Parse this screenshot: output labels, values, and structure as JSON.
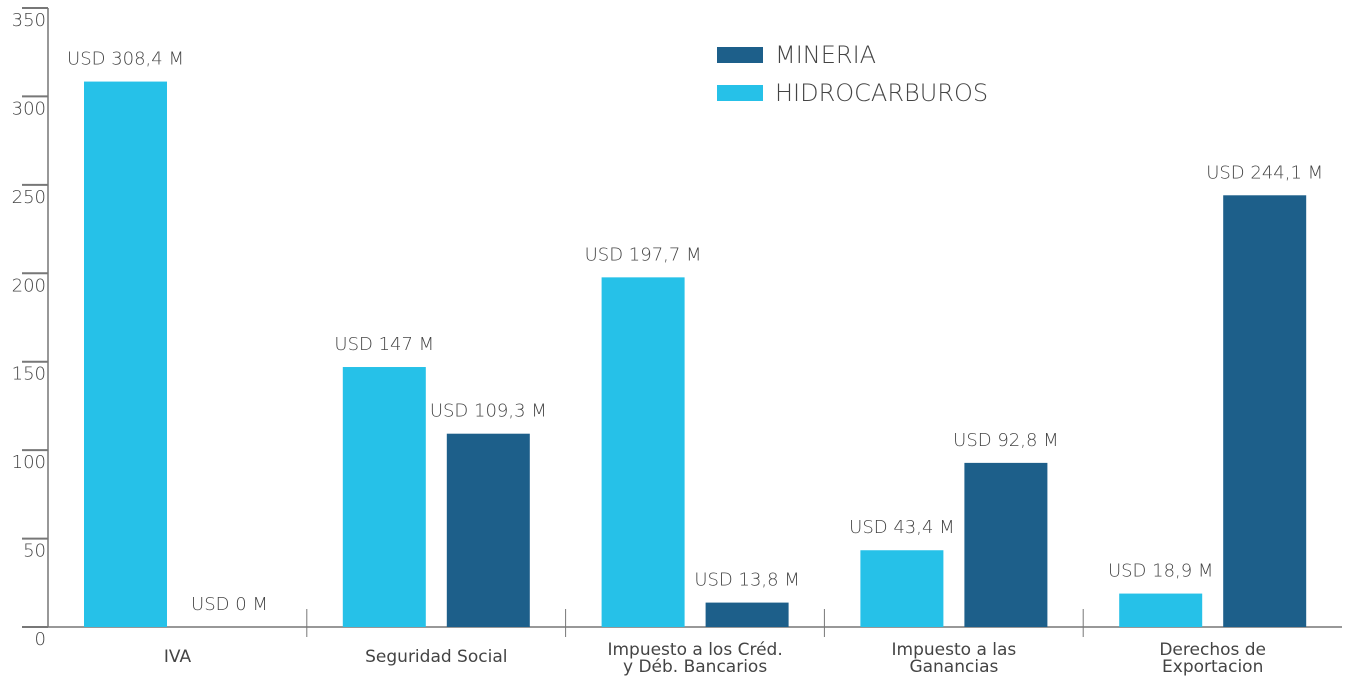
{
  "chart_data": {
    "type": "bar",
    "categories": [
      "IVA",
      "Seguridad Social",
      "Impuesto a los Créd.\ny Déb. Bancarios",
      "Impuesto a las\nGanancias",
      "Derechos de\nExportacion"
    ],
    "series": [
      {
        "name": "MINERIA",
        "color": "#1d5f8a",
        "values": [
          0,
          109.3,
          13.8,
          92.8,
          244.1
        ],
        "value_labels": [
          "USD 0 M",
          "USD 109,3 M",
          "USD 13,8 M",
          "USD 92,8 M",
          "USD 244,1 M"
        ]
      },
      {
        "name": "HIDROCARBUROS",
        "color": "#26c1e8",
        "values": [
          308.4,
          147,
          197.7,
          43.4,
          18.9
        ],
        "value_labels": [
          "USD 308,4 M",
          "USD 147 M",
          "USD 197,7 M",
          "USD 43,4 M",
          "USD 18,9 M"
        ]
      }
    ],
    "ylim": [
      0,
      350
    ],
    "yticks": [
      0,
      50,
      100,
      150,
      200,
      250,
      300,
      350
    ],
    "legend": "top-right",
    "grid": false
  }
}
